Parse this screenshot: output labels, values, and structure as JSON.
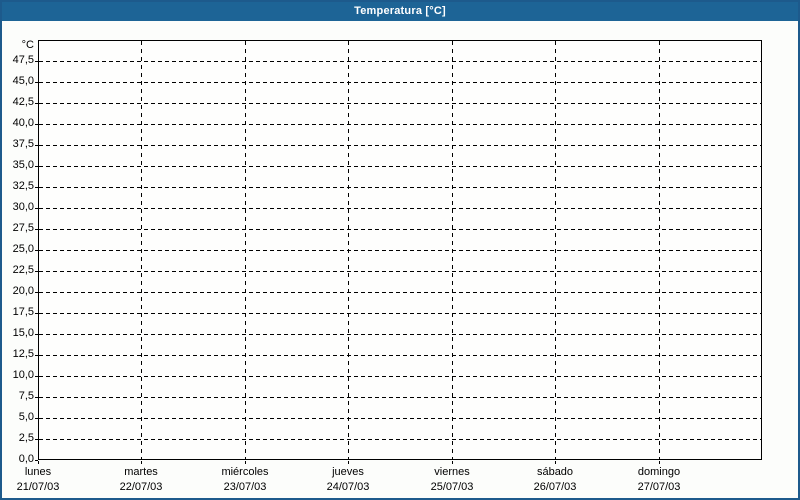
{
  "window": {
    "title": "Temperatura [°C]"
  },
  "colors": {
    "title_bar": "#1d6496",
    "outer_border": "#1d5a8c",
    "grid": "#000000",
    "background": "#fcfdfb",
    "plot_background": "#fefefd",
    "title_text": "#ffffff",
    "label_text": "#000000"
  },
  "chart_data": {
    "type": "line",
    "title": "Temperatura [°C]",
    "subtitle": "",
    "legend": "none",
    "grid": "dashed",
    "series": [],
    "y_axis": {
      "unit": "°C",
      "min": 0,
      "max": 50,
      "step": 2.5,
      "decimal_separator": ",",
      "ticks": [
        {
          "v": 47.5,
          "label": "47,5"
        },
        {
          "v": 45.0,
          "label": "45,0"
        },
        {
          "v": 42.5,
          "label": "42,5"
        },
        {
          "v": 40.0,
          "label": "40,0"
        },
        {
          "v": 37.5,
          "label": "37,5"
        },
        {
          "v": 35.0,
          "label": "35,0"
        },
        {
          "v": 32.5,
          "label": "32,5"
        },
        {
          "v": 30.0,
          "label": "30,0"
        },
        {
          "v": 27.5,
          "label": "27,5"
        },
        {
          "v": 25.0,
          "label": "25,0"
        },
        {
          "v": 22.5,
          "label": "22,5"
        },
        {
          "v": 20.0,
          "label": "20,0"
        },
        {
          "v": 17.5,
          "label": "17,5"
        },
        {
          "v": 15.0,
          "label": "15,0"
        },
        {
          "v": 12.5,
          "label": "12,5"
        },
        {
          "v": 10.0,
          "label": "10,0"
        },
        {
          "v": 7.5,
          "label": "7,5"
        },
        {
          "v": 5.0,
          "label": "5,0"
        },
        {
          "v": 2.5,
          "label": "2,5"
        },
        {
          "v": 0.0,
          "label": "0,0"
        }
      ]
    },
    "x_axis": {
      "days": [
        {
          "name": "lunes",
          "date": "21/07/03"
        },
        {
          "name": "martes",
          "date": "22/07/03"
        },
        {
          "name": "miércoles",
          "date": "23/07/03"
        },
        {
          "name": "jueves",
          "date": "24/07/03"
        },
        {
          "name": "viernes",
          "date": "25/07/03"
        },
        {
          "name": "sábado",
          "date": "26/07/03"
        },
        {
          "name": "domingo",
          "date": "27/07/03"
        }
      ]
    }
  }
}
